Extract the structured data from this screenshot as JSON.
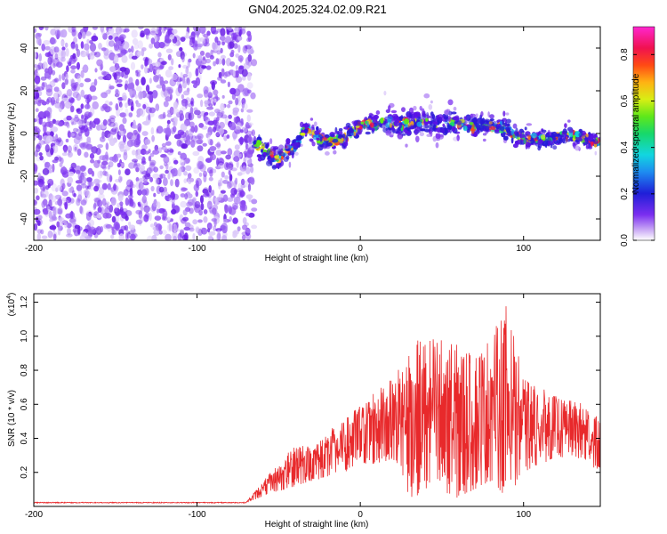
{
  "figure_title": "GN04.2025.324.02.09.R21",
  "colors": {
    "snr_line": "#e8292b",
    "frame": "#000000"
  },
  "colorbar": {
    "label": "Normalized spectral amplitude",
    "ticks": [
      "0.0",
      "0.2",
      "0.4",
      "0.6",
      "0.8"
    ],
    "tick_values": [
      0.0,
      0.2,
      0.4,
      0.6,
      0.8
    ],
    "range": [
      0,
      0.92
    ],
    "colormap": "rainbow"
  },
  "chart_data": [
    {
      "type": "heatmap",
      "name": "spectrogram",
      "xlabel": "Height of straight line (km)",
      "ylabel": "Frequency (Hz)",
      "xlim": [
        -200,
        147
      ],
      "ylim": [
        -50,
        50
      ],
      "x_ticks": [
        "-200",
        "-100",
        "0",
        "100"
      ],
      "x_tick_values": [
        -200,
        -100,
        0,
        100
      ],
      "y_ticks": [
        "-40",
        "-20",
        "0",
        "20",
        "40"
      ],
      "y_tick_values": [
        -40,
        -20,
        0,
        20,
        40
      ],
      "noise_region": [
        -200,
        -65
      ],
      "ridge": {
        "x": [
          -65,
          -60,
          -55,
          -50,
          -45,
          -40,
          -35,
          -30,
          -25,
          -20,
          -15,
          -10,
          -5,
          0,
          5,
          10,
          15,
          20,
          25,
          30,
          40,
          50,
          60,
          70,
          80,
          90,
          95,
          100,
          110,
          120,
          130,
          140,
          147
        ],
        "freq": [
          -5,
          -7,
          -10,
          -12,
          -8,
          -6,
          2,
          1,
          -2,
          -4,
          -3,
          -2,
          1,
          3,
          5,
          4,
          6,
          5,
          4,
          5,
          6,
          4,
          5,
          3,
          4,
          2,
          -1,
          -2,
          -3,
          -2,
          -1,
          -3,
          -4
        ]
      }
    },
    {
      "type": "line",
      "name": "snr",
      "xlabel": "Height of straight line (km)",
      "ylabel": "SNR (10 * v/v)",
      "multiplier_label": "(x10",
      "multiplier_exp": "4",
      "multiplier_close": ")",
      "xlim": [
        -200,
        147
      ],
      "ylim": [
        0.0,
        1.25
      ],
      "x_ticks": [
        "-200",
        "-100",
        "0",
        "100"
      ],
      "x_tick_values": [
        -200,
        -100,
        0,
        100
      ],
      "y_ticks": [
        "0.2",
        "0.4",
        "0.6",
        "0.8",
        "1.0",
        "1.2"
      ],
      "y_tick_values": [
        0.2,
        0.4,
        0.6,
        0.8,
        1.0,
        1.2
      ],
      "envelope": {
        "x": [
          -200,
          -70,
          -62,
          -55,
          -45,
          -40,
          -30,
          -20,
          -10,
          0,
          10,
          20,
          25,
          30,
          40,
          50,
          60,
          70,
          80,
          90,
          100,
          110,
          120,
          130,
          140,
          147
        ],
        "base": [
          0.02,
          0.02,
          0.05,
          0.08,
          0.1,
          0.12,
          0.15,
          0.17,
          0.2,
          0.25,
          0.25,
          0.28,
          0.2,
          0.05,
          0.08,
          0.06,
          0.05,
          0.1,
          0.15,
          0.05,
          0.2,
          0.25,
          0.28,
          0.3,
          0.25,
          0.2
        ],
        "peak": [
          0.025,
          0.025,
          0.12,
          0.2,
          0.3,
          0.4,
          0.35,
          0.45,
          0.5,
          0.62,
          0.7,
          0.75,
          0.85,
          0.95,
          1.0,
          1.0,
          0.95,
          0.9,
          1.0,
          1.2,
          0.75,
          0.7,
          0.65,
          0.62,
          0.6,
          0.5
        ]
      }
    }
  ]
}
